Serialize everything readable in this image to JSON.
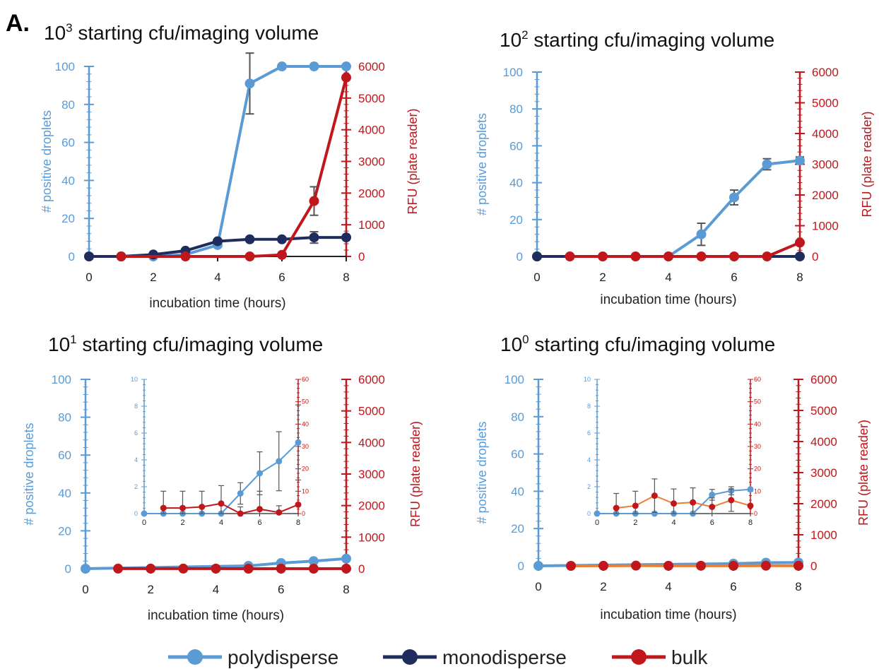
{
  "figure": {
    "panel_label": "A.",
    "legend": [
      {
        "name": "polydisperse",
        "color": "#5b9bd5"
      },
      {
        "name": "monodisperse",
        "color": "#1f2d5e"
      },
      {
        "name": "bulk",
        "color": "#c0171c"
      }
    ]
  },
  "chart_data": [
    {
      "type": "line",
      "title": "10^3 starting cfu/imaging volume",
      "title_base": "10",
      "title_exp": "3",
      "title_rest": " starting cfu/imaging volume",
      "xlabel": "incubation time (hours)",
      "ylabel": "# positive droplets",
      "y2label": "RFU (plate reader)",
      "xlim": [
        0,
        8
      ],
      "xticks": [
        0,
        2,
        4,
        6,
        8
      ],
      "ylim": [
        0,
        100
      ],
      "yticks": [
        0,
        20,
        40,
        60,
        80,
        100
      ],
      "y2lim": [
        0,
        6000
      ],
      "y2ticks": [
        0,
        1000,
        2000,
        3000,
        4000,
        5000,
        6000
      ],
      "series": [
        {
          "name": "polydisperse",
          "axis": "left",
          "color": "#5b9bd5",
          "x": [
            0,
            2,
            3,
            4,
            5,
            6,
            7,
            8
          ],
          "y": [
            0,
            0,
            1,
            6,
            91,
            100,
            100,
            100
          ],
          "err": [
            0,
            0,
            0,
            0,
            16,
            0,
            0,
            0
          ]
        },
        {
          "name": "monodisperse",
          "axis": "left",
          "color": "#1f2d5e",
          "x": [
            0,
            1,
            2,
            3,
            4,
            5,
            6,
            7,
            8
          ],
          "y": [
            0,
            0,
            1,
            3,
            8,
            9,
            9,
            10,
            10
          ],
          "err": [
            0,
            0,
            0,
            0,
            0,
            0,
            0,
            3,
            0
          ]
        },
        {
          "name": "bulk",
          "axis": "right",
          "color": "#c0171c",
          "x": [
            1,
            3,
            5,
            6,
            7,
            8
          ],
          "y": [
            0,
            0,
            0,
            50,
            1750,
            5650
          ],
          "err": [
            0,
            0,
            0,
            0,
            450,
            0
          ]
        }
      ]
    },
    {
      "type": "line",
      "title": "10^2 starting cfu/imaging volume",
      "title_base": "10",
      "title_exp": "2",
      "title_rest": " starting cfu/imaging volume",
      "xlabel": "incubation time (hours)",
      "ylabel": "# positive droplets",
      "y2label": "RFU (plate reader)",
      "xlim": [
        0,
        8
      ],
      "xticks": [
        0,
        2,
        4,
        6,
        8
      ],
      "ylim": [
        0,
        100
      ],
      "yticks": [
        0,
        20,
        40,
        60,
        80,
        100
      ],
      "y2lim": [
        0,
        6000
      ],
      "y2ticks": [
        0,
        1000,
        2000,
        3000,
        4000,
        5000,
        6000
      ],
      "series": [
        {
          "name": "polydisperse",
          "axis": "left",
          "color": "#5b9bd5",
          "x": [
            0,
            4,
            5,
            6,
            7,
            8
          ],
          "y": [
            0,
            0,
            12,
            32,
            50,
            52
          ],
          "err": [
            0,
            0,
            6,
            4,
            3,
            2
          ]
        },
        {
          "name": "monodisperse",
          "axis": "left",
          "color": "#1f2d5e",
          "x": [
            0,
            8
          ],
          "y": [
            0,
            0
          ],
          "err": [
            0,
            0
          ]
        },
        {
          "name": "bulk",
          "axis": "right",
          "color": "#c0171c",
          "x": [
            1,
            2,
            3,
            4,
            5,
            6,
            7,
            8
          ],
          "y": [
            0,
            0,
            0,
            0,
            0,
            0,
            0,
            450
          ],
          "err": [
            0,
            0,
            0,
            0,
            0,
            0,
            0,
            0
          ]
        }
      ]
    },
    {
      "type": "line",
      "title": "10^1 starting cfu/imaging volume",
      "title_base": "10",
      "title_exp": "1",
      "title_rest": " starting cfu/imaging volume",
      "xlabel": "incubation time (hours)",
      "ylabel": "# positive droplets",
      "y2label": "RFU (plate reader)",
      "xlim": [
        0,
        8
      ],
      "xticks": [
        0,
        2,
        4,
        6,
        8
      ],
      "ylim": [
        0,
        100
      ],
      "yticks": [
        0,
        20,
        40,
        60,
        80,
        100
      ],
      "y2lim": [
        0,
        6000
      ],
      "y2ticks": [
        0,
        1000,
        2000,
        3000,
        4000,
        5000,
        6000
      ],
      "series": [
        {
          "name": "polydisperse",
          "axis": "left",
          "color": "#5b9bd5",
          "x": [
            0,
            5,
            6,
            7,
            8
          ],
          "y": [
            0,
            1.5,
            3,
            4,
            5.3
          ],
          "err": [
            0,
            0,
            0,
            0,
            0
          ]
        },
        {
          "name": "bulk",
          "axis": "right",
          "color": "#c0171c",
          "x": [
            1,
            2,
            3,
            4,
            5,
            6,
            7,
            8
          ],
          "y": [
            2,
            2,
            2,
            3,
            0,
            2,
            0,
            3
          ],
          "err": [
            0,
            0,
            0,
            0,
            0,
            0,
            0,
            0
          ]
        }
      ],
      "inset": {
        "xlim": [
          0,
          8
        ],
        "xticks": [
          0,
          2,
          4,
          6,
          8
        ],
        "ylim": [
          0,
          10
        ],
        "yticks": [
          0,
          2,
          4,
          6,
          8,
          10
        ],
        "y2lim": [
          0,
          60
        ],
        "y2ticks": [
          0,
          10,
          20,
          30,
          40,
          50,
          60
        ],
        "series": [
          {
            "name": "polydisperse",
            "axis": "left",
            "color": "#5b9bd5",
            "x": [
              0,
              1,
              2,
              3,
              4,
              5,
              6,
              7,
              8
            ],
            "y": [
              0,
              0,
              0,
              0,
              0,
              1.5,
              3,
              3.9,
              5.3
            ],
            "err": [
              0,
              0,
              0,
              0,
              0,
              0.8,
              1.6,
              2.2,
              2.8
            ]
          },
          {
            "name": "bulk",
            "axis": "right",
            "color": "#c0171c",
            "x": [
              1,
              2,
              3,
              4,
              5,
              6,
              7,
              8
            ],
            "y": [
              2.5,
              2.5,
              3,
              4.5,
              0,
              2,
              0.5,
              4
            ],
            "err": [
              7.5,
              7.5,
              7,
              8,
              3,
              8,
              3,
              0
            ]
          }
        ]
      }
    },
    {
      "type": "line",
      "title": "10^0 starting cfu/imaging volume",
      "title_base": "10",
      "title_exp": "0",
      "title_rest": " starting cfu/imaging volume",
      "xlabel": "incubation time (hours)",
      "ylabel": "# positive droplets",
      "y2label": "RFU (plate reader)",
      "xlim": [
        0,
        8
      ],
      "xticks": [
        0,
        2,
        4,
        6,
        8
      ],
      "ylim": [
        0,
        100
      ],
      "yticks": [
        0,
        20,
        40,
        60,
        80,
        100
      ],
      "y2lim": [
        0,
        6000
      ],
      "y2ticks": [
        0,
        1000,
        2000,
        3000,
        4000,
        5000,
        6000
      ],
      "series": [
        {
          "name": "polydisperse",
          "axis": "left",
          "color": "#5b9bd5",
          "x": [
            0,
            6,
            7,
            8
          ],
          "y": [
            0,
            1.2,
            1.7,
            1.8
          ],
          "err": [
            0,
            0,
            0,
            0
          ]
        },
        {
          "name": "bulk",
          "axis": "right",
          "color": "#ed7d31",
          "marker_color": "#c0171c",
          "x": [
            1,
            2,
            3,
            4,
            5,
            6,
            7,
            8
          ],
          "y": [
            0,
            2,
            8,
            3,
            4,
            2,
            5,
            2
          ],
          "err": [
            0,
            0,
            0,
            0,
            0,
            0,
            0,
            0
          ]
        }
      ],
      "inset": {
        "xlim": [
          0,
          8
        ],
        "xticks": [
          0,
          2,
          4,
          6,
          8
        ],
        "ylim": [
          0,
          10
        ],
        "yticks": [
          0,
          2,
          4,
          6,
          8,
          10
        ],
        "y2lim": [
          0,
          60
        ],
        "y2ticks": [
          0,
          10,
          20,
          30,
          40,
          50,
          60
        ],
        "series": [
          {
            "name": "polydisperse",
            "axis": "left",
            "color": "#5b9bd5",
            "x": [
              0,
              1,
              2,
              3,
              4,
              5,
              6,
              7,
              8
            ],
            "y": [
              0,
              0,
              0,
              0,
              0,
              0,
              1.4,
              1.7,
              1.8
            ],
            "err": [
              0,
              0,
              0,
              0,
              0,
              0,
              0.4,
              0.3,
              0
            ]
          },
          {
            "name": "bulk",
            "axis": "right",
            "color": "#ed7d31",
            "marker_color": "#c0171c",
            "x": [
              1,
              2,
              3,
              4,
              5,
              6,
              7,
              8
            ],
            "y": [
              2.5,
              3.5,
              8,
              4.5,
              5,
              3,
              6,
              3.5
            ],
            "err": [
              6.5,
              6.5,
              7.5,
              6.5,
              6.5,
              4,
              5,
              0
            ]
          }
        ]
      }
    }
  ]
}
